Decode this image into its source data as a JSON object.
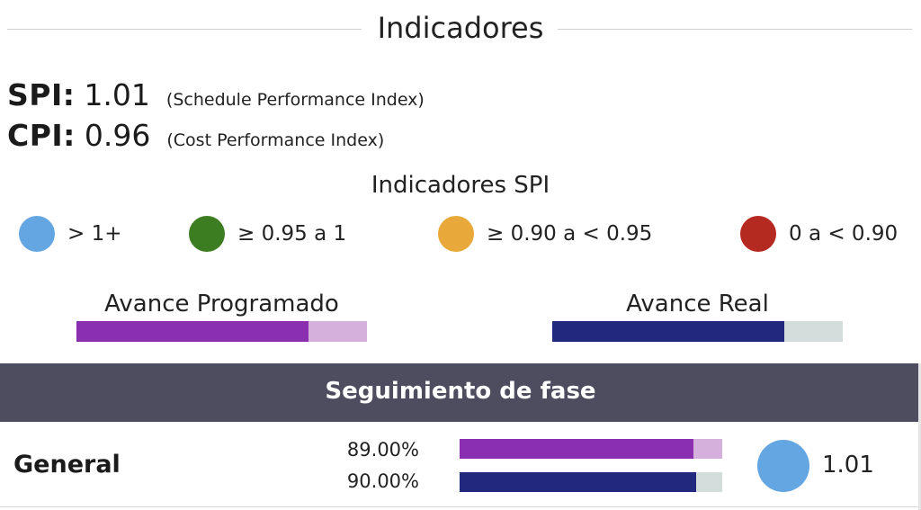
{
  "header": {
    "title": "Indicadores"
  },
  "metrics": [
    {
      "key": "SPI:",
      "value": "1.01",
      "desc": "(Schedule Performance Index)"
    },
    {
      "key": "CPI:",
      "value": "0.96",
      "desc": "(Cost Performance Index)"
    }
  ],
  "legend": {
    "title": "Indicadores SPI",
    "items": [
      {
        "label": "> 1+",
        "color": "#64a6e2"
      },
      {
        "label": "≥ 0.95 a 1",
        "color": "#3c7d22"
      },
      {
        "label": "≥ 0.90 a < 0.95",
        "color": "#e9a93a"
      },
      {
        "label": "0 a < 0.90",
        "color": "#b42a20"
      }
    ]
  },
  "progress": {
    "programado": {
      "label": "Avance Programado",
      "fill": 0.8,
      "color": "#8b2fb1",
      "rest_color": "#d5b0dc"
    },
    "real": {
      "label": "Avance Real",
      "fill": 0.8,
      "color": "#22287d",
      "rest_color": "#d3dedc"
    }
  },
  "section": {
    "title": "Seguimiento de fase"
  },
  "row": {
    "name": "General",
    "programado_pct": "89.00%",
    "programado_fill": 0.89,
    "real_pct": "90.00%",
    "real_fill": 0.9,
    "spi_value": "1.01",
    "spi_color": "#64a6e2"
  }
}
